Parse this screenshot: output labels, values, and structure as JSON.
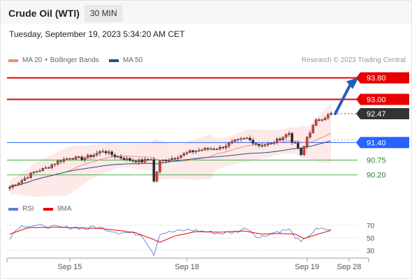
{
  "header": {
    "title": "Crude Oil (WTI)",
    "timeframe": "30 MIN"
  },
  "timestamp": "Tuesday, September 19, 2023 5:34:20 AM CET",
  "legend": {
    "bollinger": {
      "label": "MA 20 + Bollinger Bands",
      "color": "#f28b82"
    },
    "ma50": {
      "label": "MA 50",
      "color": "#1f4e8c"
    }
  },
  "credit": "Research © 2023 Trading Central",
  "rsi_legend": {
    "rsi": {
      "label": "RSI",
      "color": "#5b7fd6"
    },
    "ma9": {
      "label": "9MA",
      "color": "#e60000"
    }
  },
  "chart_data": {
    "type": "candlestick",
    "price_range": [
      89.65,
      94.1
    ],
    "levels": [
      {
        "label": "93.80",
        "value": 93.8,
        "color": "#e60000",
        "kind": "resistance",
        "badge": true
      },
      {
        "label": "93.00",
        "value": 93.0,
        "color": "#e60000",
        "kind": "resistance",
        "badge": true
      },
      {
        "label": "92.47",
        "value": 92.47,
        "color": "#333333",
        "kind": "last",
        "badge": true
      },
      {
        "label": "91.40",
        "value": 91.4,
        "color": "#2962ff",
        "kind": "pivot",
        "badge": true
      },
      {
        "label": "90.75",
        "value": 90.75,
        "color": "#4caf50",
        "kind": "support",
        "badge": false
      },
      {
        "label": "90.20",
        "value": 90.2,
        "color": "#4caf50",
        "kind": "support",
        "badge": false
      }
    ],
    "x_ticks": [
      {
        "label": "Sep 15",
        "index": 20
      },
      {
        "label": "Sep 18",
        "index": 59
      },
      {
        "label": "Sep 19",
        "index": 99
      },
      {
        "label": "Sep 28",
        "index": 113
      }
    ],
    "candle_count": 108,
    "ohlc_anchors": [
      [
        0,
        89.75
      ],
      [
        4,
        90.0
      ],
      [
        8,
        90.3
      ],
      [
        12,
        90.45
      ],
      [
        16,
        90.7
      ],
      [
        20,
        90.85
      ],
      [
        24,
        90.8
      ],
      [
        28,
        90.95
      ],
      [
        31,
        91.1
      ],
      [
        35,
        90.9
      ],
      [
        40,
        90.75
      ],
      [
        44,
        90.7
      ],
      [
        47,
        90.8
      ],
      [
        48,
        89.95
      ],
      [
        50,
        90.7
      ],
      [
        55,
        90.85
      ],
      [
        60,
        91.05
      ],
      [
        65,
        91.15
      ],
      [
        70,
        91.2
      ],
      [
        75,
        91.45
      ],
      [
        79,
        91.55
      ],
      [
        83,
        91.3
      ],
      [
        87,
        91.35
      ],
      [
        90,
        91.55
      ],
      [
        93,
        91.75
      ],
      [
        94,
        91.45
      ],
      [
        96,
        91.2
      ],
      [
        97,
        90.9
      ],
      [
        99,
        91.6
      ],
      [
        102,
        92.2
      ],
      [
        105,
        92.35
      ],
      [
        107,
        92.47
      ]
    ],
    "target_arrow": {
      "from": 92.47,
      "to": 93.8
    },
    "rsi": {
      "ticks": [
        70,
        50,
        30
      ],
      "range": [
        20,
        80
      ],
      "anchors": [
        [
          0,
          50
        ],
        [
          3,
          68
        ],
        [
          6,
          70
        ],
        [
          12,
          68
        ],
        [
          18,
          66
        ],
        [
          22,
          67
        ],
        [
          26,
          64
        ],
        [
          28,
          68
        ],
        [
          32,
          64
        ],
        [
          36,
          59
        ],
        [
          40,
          58
        ],
        [
          44,
          55
        ],
        [
          46,
          40
        ],
        [
          48,
          24
        ],
        [
          50,
          57
        ],
        [
          55,
          60
        ],
        [
          60,
          63
        ],
        [
          65,
          60
        ],
        [
          70,
          57
        ],
        [
          75,
          59
        ],
        [
          79,
          66
        ],
        [
          83,
          50
        ],
        [
          86,
          56
        ],
        [
          90,
          61
        ],
        [
          93,
          63
        ],
        [
          95,
          52
        ],
        [
          97,
          42
        ],
        [
          99,
          52
        ],
        [
          102,
          63
        ],
        [
          105,
          64
        ],
        [
          107,
          62
        ]
      ],
      "ma9_anchors": [
        [
          0,
          56
        ],
        [
          6,
          66
        ],
        [
          14,
          67
        ],
        [
          22,
          66
        ],
        [
          30,
          65
        ],
        [
          36,
          62
        ],
        [
          42,
          58
        ],
        [
          47,
          49
        ],
        [
          50,
          43
        ],
        [
          55,
          53
        ],
        [
          62,
          60
        ],
        [
          70,
          59
        ],
        [
          78,
          61
        ],
        [
          84,
          56
        ],
        [
          90,
          57
        ],
        [
          95,
          56
        ],
        [
          98,
          49
        ],
        [
          102,
          55
        ],
        [
          107,
          62
        ]
      ]
    }
  }
}
